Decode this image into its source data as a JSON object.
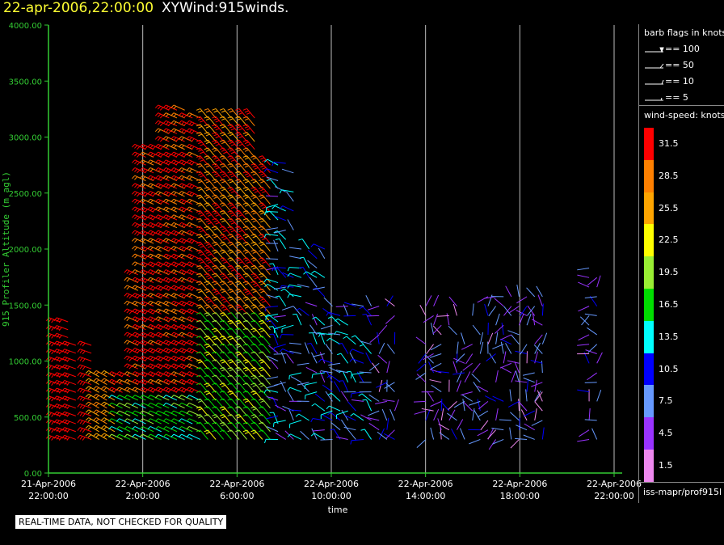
{
  "header": {
    "datetime": "22-apr-2006,22:00:00",
    "title": "XYWind:915winds."
  },
  "footer": {
    "note": "REAL-TIME DATA, NOT CHECKED FOR QUALITY",
    "source": "iss-mapr/prof915l"
  },
  "legend": {
    "barb_title": "barb flags in knots",
    "barbs": [
      {
        "label": "== 100"
      },
      {
        "label": "== 50"
      },
      {
        "label": "== 10"
      },
      {
        "label": "== 5"
      }
    ],
    "speed_title": "wind-speed: knots",
    "speed_scale": [
      {
        "label": "31.5",
        "color": "#ff0000"
      },
      {
        "label": "28.5",
        "color": "#ff8000"
      },
      {
        "label": "25.5",
        "color": "#ffa500"
      },
      {
        "label": "22.5",
        "color": "#ffff00"
      },
      {
        "label": "19.5",
        "color": "#99ee33"
      },
      {
        "label": "16.5",
        "color": "#00dd00"
      },
      {
        "label": "13.5",
        "color": "#00ffff"
      },
      {
        "label": "10.5",
        "color": "#0000ff"
      },
      {
        "label": "7.5",
        "color": "#6699ff"
      },
      {
        "label": "4.5",
        "color": "#9933ff"
      },
      {
        "label": "1.5",
        "color": "#ee88ee"
      }
    ]
  },
  "chart_data": {
    "type": "scatter",
    "ylabel": "915 Profiler Altitude (m agl)",
    "xlabel": "time",
    "ylim": [
      0,
      4000
    ],
    "yticks": [
      "0.00",
      "500.00",
      "1000.00",
      "1500.00",
      "2000.00",
      "2500.00",
      "3000.00",
      "3500.00",
      "4000.00"
    ],
    "xlim_hours": [
      0,
      24
    ],
    "xticks": [
      {
        "date": "21-Apr-2006",
        "time": "22:00:00"
      },
      {
        "date": "22-Apr-2006",
        "time": "2:00:00"
      },
      {
        "date": "22-Apr-2006",
        "time": "6:00:00"
      },
      {
        "date": "22-Apr-2006",
        "time": "10:00:00"
      },
      {
        "date": "22-Apr-2006",
        "time": "14:00:00"
      },
      {
        "date": "22-Apr-2006",
        "time": "18:00:00"
      },
      {
        "date": "22-Apr-2006",
        "time": "22:00:00"
      }
    ],
    "grid": "vertical",
    "colors": {
      "axis": "#33cc33",
      "grid": "#bbbbbb",
      "axis_text": "#33cc33"
    }
  }
}
